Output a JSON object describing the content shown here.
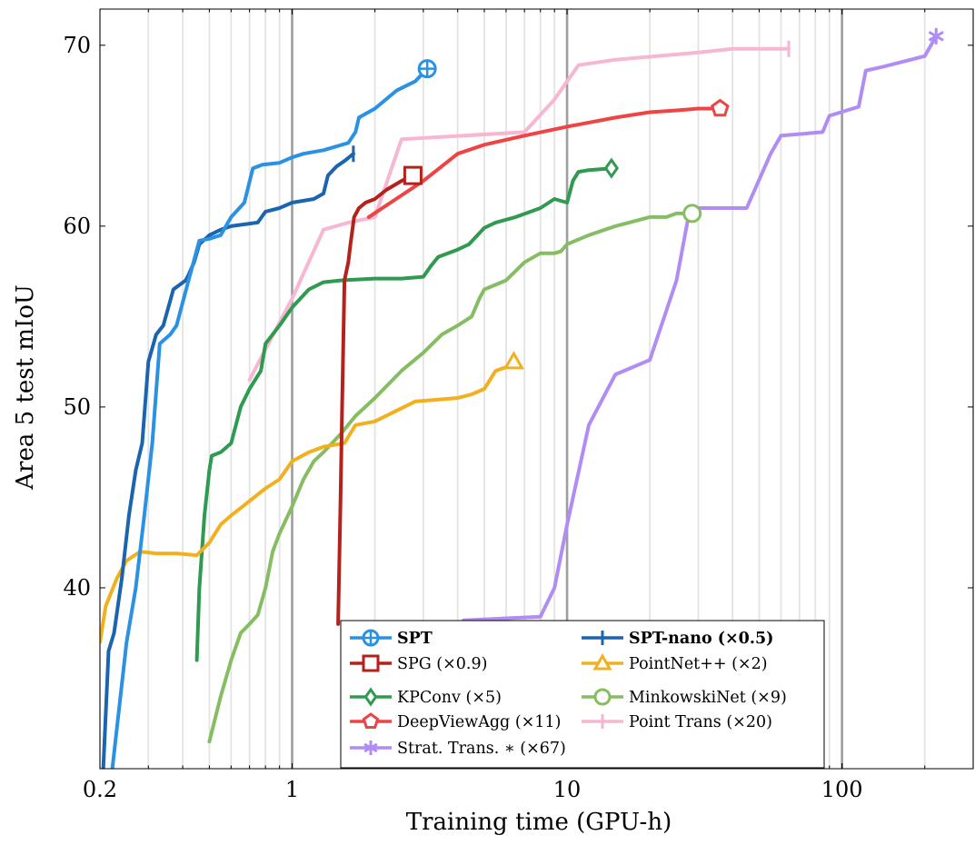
{
  "chart_data": {
    "type": "line",
    "title": "",
    "xlabel": "Training time (GPU-h)",
    "ylabel": "Area 5 test mIoU",
    "xscale": "log",
    "xlim": [
      0.2,
      300
    ],
    "ylim": [
      30,
      72
    ],
    "xticks": [
      {
        "value": 0.2,
        "label": "0.2"
      },
      {
        "value": 1,
        "label": "1"
      },
      {
        "value": 10,
        "label": "10"
      },
      {
        "value": 100,
        "label": "100"
      }
    ],
    "yticks": [
      {
        "value": 40,
        "label": "40"
      },
      {
        "value": 50,
        "label": "50"
      },
      {
        "value": 60,
        "label": "60"
      },
      {
        "value": 70,
        "label": "70"
      }
    ],
    "grid": "vertical minor lines at log decades, major lines at 1, 10, 100",
    "legend_position": "bottom-center",
    "series": [
      {
        "name": "SPT",
        "bold": true,
        "color": "#2b91e3",
        "marker": "circle-plus",
        "x": [
          0.22,
          0.25,
          0.27,
          0.29,
          0.31,
          0.33,
          0.36,
          0.38,
          0.42,
          0.46,
          0.5,
          0.55,
          0.6,
          0.67,
          0.72,
          0.78,
          0.9,
          1.0,
          1.1,
          1.3,
          1.6,
          1.7,
          1.75,
          2.0,
          2.4,
          2.8,
          3.1
        ],
        "y": [
          29.5,
          37.0,
          40.0,
          44.0,
          48.0,
          53.5,
          54.0,
          54.5,
          57.0,
          59.2,
          59.3,
          59.5,
          60.5,
          61.3,
          63.2,
          63.4,
          63.5,
          63.8,
          64.0,
          64.2,
          64.6,
          65.2,
          66.0,
          66.5,
          67.5,
          68.0,
          68.7
        ]
      },
      {
        "name": "SPT-nano (×0.5)",
        "bold": true,
        "color": "#1a64b0",
        "marker": "bar",
        "x": [
          0.205,
          0.215,
          0.225,
          0.24,
          0.255,
          0.27,
          0.285,
          0.3,
          0.32,
          0.34,
          0.37,
          0.41,
          0.42,
          0.44,
          0.46,
          0.5,
          0.55,
          0.6,
          0.75,
          0.8,
          0.9,
          1.0,
          1.2,
          1.3,
          1.35,
          1.45,
          1.55,
          1.67
        ],
        "y": [
          29.5,
          36.5,
          37.5,
          40.5,
          44.0,
          46.5,
          48.0,
          52.5,
          54.0,
          54.5,
          56.5,
          57.0,
          57.3,
          58.0,
          59.0,
          59.5,
          59.8,
          60.0,
          60.2,
          60.8,
          61.0,
          61.3,
          61.5,
          61.8,
          62.8,
          63.3,
          63.6,
          64.0
        ]
      },
      {
        "name": "SPG (×0.9)",
        "bold": false,
        "color": "#b5211b",
        "marker": "square",
        "x": [
          1.47,
          1.5,
          1.52,
          1.55,
          1.6,
          1.63,
          1.68,
          1.75,
          1.85,
          2.0,
          2.2,
          2.5,
          2.75
        ],
        "y": [
          38.0,
          45.0,
          50.0,
          57.0,
          58.0,
          59.0,
          60.5,
          61.0,
          61.3,
          61.5,
          62.0,
          62.5,
          62.8
        ]
      },
      {
        "name": "PointNet++ (×2)",
        "bold": false,
        "color": "#f2b01e",
        "marker": "triangle",
        "x": [
          0.2,
          0.21,
          0.23,
          0.25,
          0.28,
          0.32,
          0.38,
          0.45,
          0.5,
          0.55,
          0.6,
          0.7,
          0.8,
          0.9,
          1.0,
          1.15,
          1.3,
          1.55,
          1.7,
          2.0,
          2.4,
          2.8,
          4.0,
          4.5,
          5.0,
          5.5,
          6.0,
          6.4
        ],
        "y": [
          37.0,
          39.0,
          40.5,
          41.5,
          42.0,
          41.9,
          41.9,
          41.8,
          42.5,
          43.5,
          44.0,
          44.8,
          45.5,
          46.0,
          47.0,
          47.5,
          47.8,
          48.0,
          49.0,
          49.2,
          49.8,
          50.3,
          50.5,
          50.7,
          51.0,
          52.0,
          52.2,
          52.5
        ]
      },
      {
        "name": "KPConv (×5)",
        "bold": false,
        "color": "#2f9a50",
        "marker": "diamond",
        "x": [
          0.45,
          0.46,
          0.48,
          0.5,
          0.51,
          0.55,
          0.6,
          0.65,
          0.7,
          0.77,
          0.8,
          0.9,
          1.0,
          1.15,
          1.3,
          1.5,
          2.0,
          2.5,
          3.0,
          3.2,
          3.4,
          4.0,
          4.4,
          5.0,
          5.5,
          6.5,
          8.0,
          9.0,
          10.0,
          10.5,
          11.0,
          12.0,
          14.5
        ],
        "y": [
          36.0,
          40.0,
          44.0,
          46.5,
          47.3,
          47.5,
          48.0,
          50.0,
          51.0,
          52.0,
          53.5,
          54.5,
          55.5,
          56.5,
          56.9,
          57.0,
          57.1,
          57.1,
          57.2,
          57.8,
          58.3,
          58.7,
          59.0,
          59.9,
          60.2,
          60.5,
          61.0,
          61.5,
          61.3,
          62.5,
          63.0,
          63.1,
          63.2
        ]
      },
      {
        "name": "MinkowskiNet (×9)",
        "bold": false,
        "color": "#87bd62",
        "marker": "circle",
        "x": [
          0.5,
          0.55,
          0.6,
          0.65,
          0.7,
          0.75,
          0.8,
          0.85,
          0.9,
          1.0,
          1.1,
          1.2,
          1.3,
          1.5,
          1.7,
          2.0,
          2.5,
          3.0,
          3.5,
          4.0,
          4.5,
          4.8,
          5.0,
          6.0,
          7.0,
          8.0,
          9.0,
          9.5,
          10.0,
          12.0,
          15.0,
          20.0,
          23.0,
          25.0,
          28.5
        ],
        "y": [
          31.5,
          34.0,
          36.0,
          37.5,
          38.0,
          38.5,
          40.0,
          42.0,
          43.0,
          44.5,
          46.0,
          47.0,
          47.5,
          48.5,
          49.5,
          50.5,
          52.0,
          53.0,
          54.0,
          54.5,
          55.0,
          56.0,
          56.5,
          57.0,
          58.0,
          58.5,
          58.5,
          58.6,
          59.0,
          59.5,
          60.0,
          60.5,
          60.5,
          60.7,
          60.7
        ]
      },
      {
        "name": "DeepViewAgg (×11)",
        "bold": false,
        "color": "#ee4444",
        "marker": "pentagon",
        "x": [
          1.9,
          2.5,
          3.0,
          4.0,
          5.0,
          7.0,
          10.0,
          15.0,
          20.0,
          25.0,
          30.0,
          36.0
        ],
        "y": [
          60.5,
          61.7,
          62.5,
          64.0,
          64.5,
          65.0,
          65.5,
          66.0,
          66.3,
          66.4,
          66.5,
          66.5
        ]
      },
      {
        "name": "Point Trans (×20)",
        "bold": false,
        "color": "#f7b6d2",
        "marker": "bar",
        "x": [
          0.7,
          1.0,
          1.3,
          1.6,
          2.0,
          2.5,
          7.0,
          9.0,
          11.0,
          15.0,
          30.0,
          40.0,
          64.0
        ],
        "y": [
          51.5,
          56.0,
          59.8,
          60.2,
          60.5,
          64.8,
          65.2,
          67.0,
          68.9,
          69.2,
          69.6,
          69.8,
          69.8
        ]
      },
      {
        "name": "Strat. Trans. ∗ (×67)",
        "bold": false,
        "color": "#b18cf5",
        "marker": "asterisk",
        "x": [
          4.2,
          8.0,
          9.0,
          10.0,
          12.0,
          15.0,
          20.0,
          25.0,
          28.0,
          31.0,
          45.0,
          55.0,
          60.0,
          85.0,
          90.0,
          115.0,
          122.0,
          140.0,
          200.0,
          220.0
        ],
        "y": [
          38.2,
          38.4,
          40.0,
          43.5,
          49.0,
          51.8,
          52.6,
          57.0,
          61.0,
          61.0,
          61.0,
          64.0,
          65.0,
          65.2,
          66.1,
          66.6,
          68.6,
          68.8,
          69.4,
          70.5
        ]
      }
    ]
  }
}
